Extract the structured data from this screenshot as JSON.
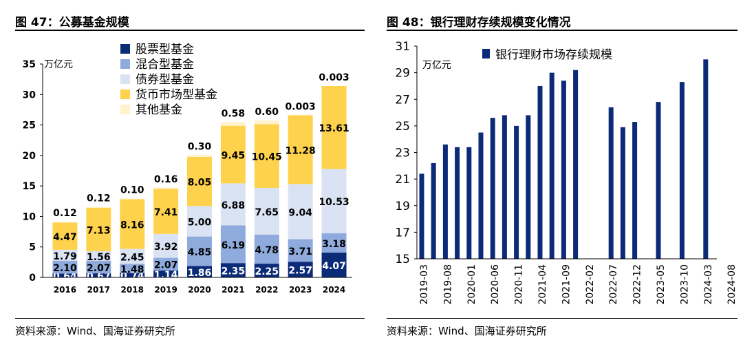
{
  "left": {
    "title": "图 47：公募基金规模",
    "source": "资料来源：Wind、国海证券研究所",
    "unit": "万亿元"
  },
  "right": {
    "title": "图 48：银行理财存续规模变化情况",
    "source": "资料来源：Wind、国海证券研究所",
    "unit": "万亿元"
  },
  "chart_data": [
    {
      "type": "bar",
      "stacked": true,
      "title": "公募基金规模",
      "ylabel": "万亿元",
      "ylim": [
        0,
        35
      ],
      "yticks": [
        0,
        5,
        10,
        15,
        20,
        25,
        30,
        35
      ],
      "categories": [
        "2016",
        "2017",
        "2018",
        "2019",
        "2020",
        "2021",
        "2022",
        "2023",
        "2024"
      ],
      "series": [
        {
          "name": "股票型基金",
          "color": "#0b2a78",
          "values": [
            0.64,
            0.67,
            0.74,
            1.14,
            1.86,
            2.35,
            2.25,
            2.57,
            4.07
          ]
        },
        {
          "name": "混合型基金",
          "color": "#8faadc",
          "values": [
            2.1,
            2.07,
            1.48,
            2.07,
            4.85,
            6.19,
            4.78,
            3.71,
            3.18
          ]
        },
        {
          "name": "债券型基金",
          "color": "#dae3f3",
          "values": [
            1.79,
            1.56,
            2.45,
            3.92,
            5.0,
            6.88,
            7.65,
            9.04,
            10.53
          ]
        },
        {
          "name": "货币市场型基金",
          "color": "#ffd24d",
          "values": [
            4.47,
            7.13,
            8.16,
            7.41,
            8.05,
            9.45,
            10.45,
            11.28,
            13.61
          ]
        },
        {
          "name": "其他基金",
          "color": "#fff2cc",
          "values": [
            0.12,
            0.12,
            0.1,
            0.16,
            0.3,
            0.58,
            0.6,
            0.003,
            0.003
          ]
        }
      ],
      "legend": "top"
    },
    {
      "type": "bar",
      "title": "银行理财存续规模变化情况",
      "ylabel": "万亿元",
      "ylim": [
        15,
        31
      ],
      "yticks": [
        15,
        17,
        19,
        21,
        23,
        25,
        27,
        29,
        31
      ],
      "xticklabels": [
        "2019-03",
        "2019-08",
        "2020-01",
        "2020-06",
        "2020-11",
        "2021-04",
        "2021-09",
        "2022-02",
        "2022-07",
        "2022-12",
        "2023-05",
        "2023-10",
        "2024-03",
        "2024-08"
      ],
      "series": [
        {
          "name": "银行理财市场存续规模",
          "color": "#0b2a78",
          "values": [
            21.4,
            22.2,
            23.6,
            23.4,
            23.4,
            24.5,
            25.6,
            25.8,
            25.0,
            25.8,
            28.0,
            29.0,
            28.4,
            29.2,
            null,
            null,
            26.4,
            24.9,
            25.3,
            null,
            26.8,
            null,
            28.3,
            null,
            30.0
          ]
        }
      ],
      "legend": "top-left"
    }
  ]
}
